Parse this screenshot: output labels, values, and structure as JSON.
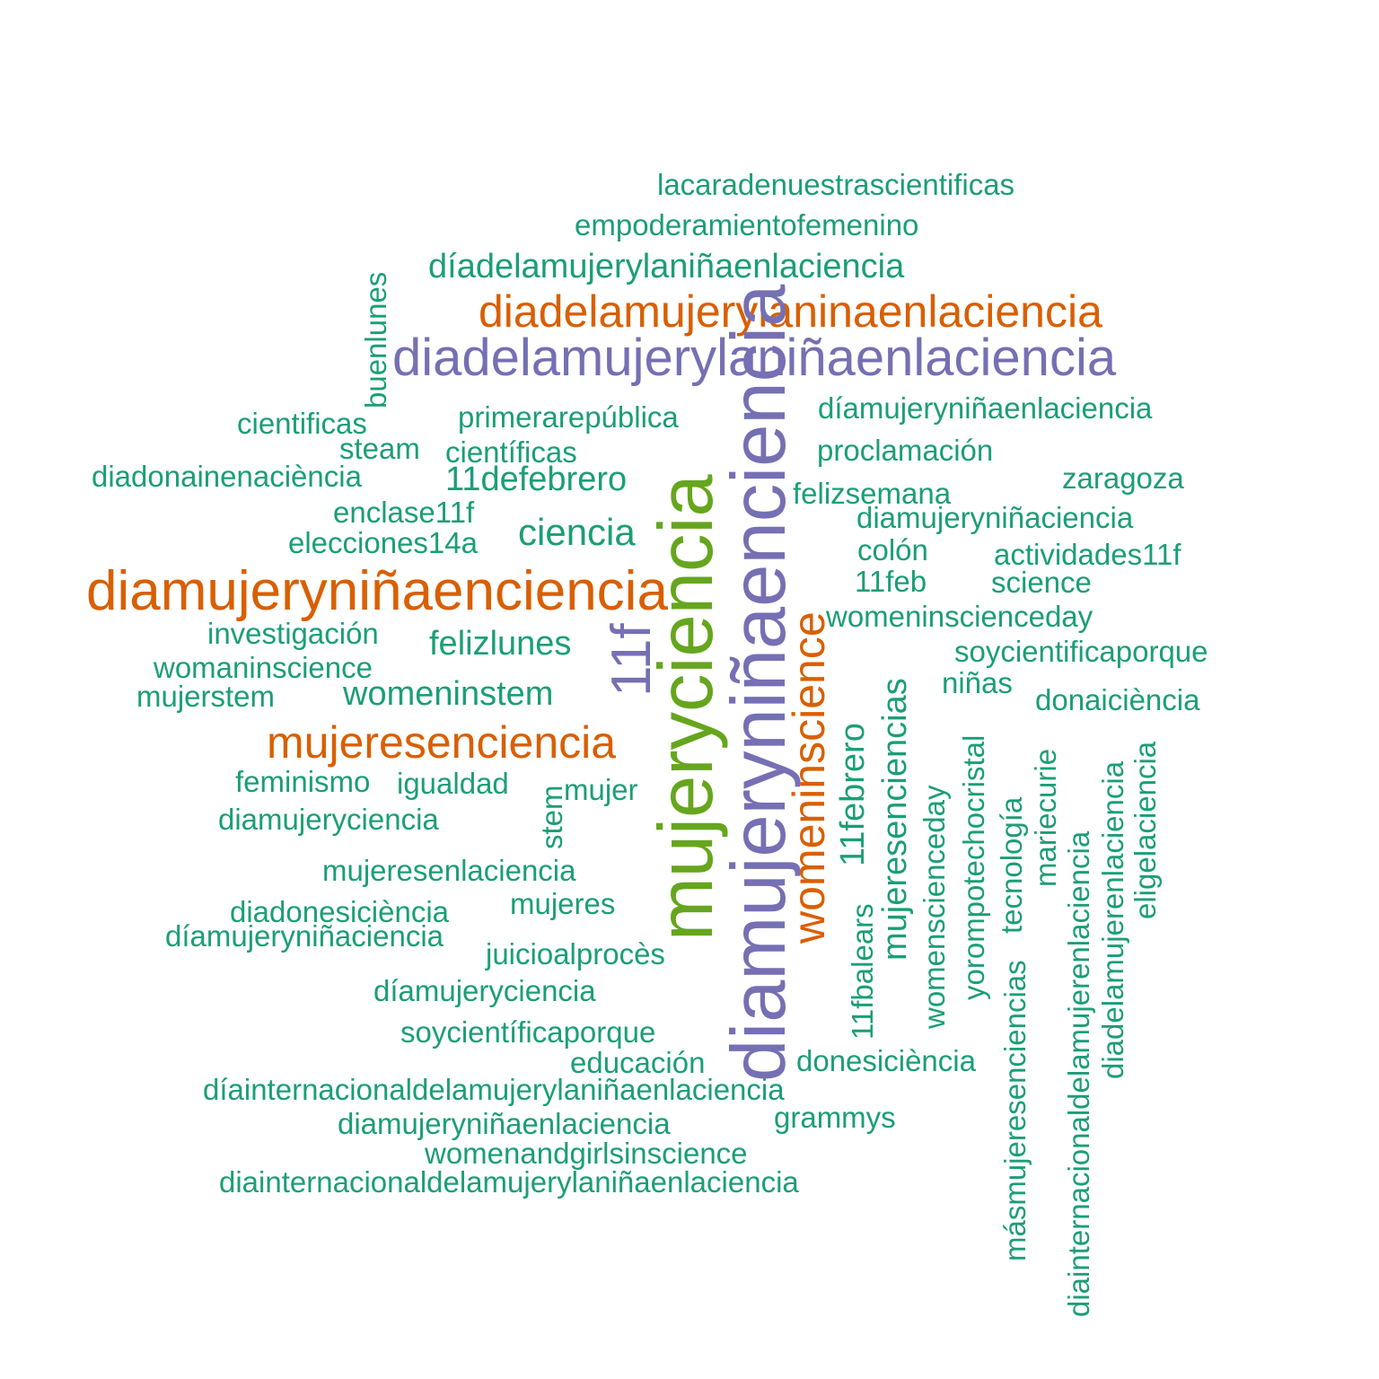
{
  "colors": {
    "teal": "#1b9e77",
    "orange": "#d95f02",
    "purple": "#7570b3",
    "green": "#66a61e",
    "background": "#ffffff"
  },
  "words": [
    "lacaradenuestrascientificas",
    "empoderamientofemenino",
    "díadelamujerylaniñaenlaciencia",
    "diadelamujerylaninaenlaciencia",
    "diadelamujerylaniñaenlaciencia",
    "buenlunes",
    "cientificas",
    "primerarepública",
    "díamujeryniñaenlaciencia",
    "steam",
    "científicas",
    "proclamación",
    "diadonainenaciència",
    "11defebrero",
    "zaragoza",
    "felizsemana",
    "enclase11f",
    "diamujeryniñaciencia",
    "elecciones14a",
    "ciencia",
    "colón",
    "actividades11f",
    "11feb",
    "science",
    "diamujeryniñaenciencia",
    "womeninscienceday",
    "investigación",
    "felizlunes",
    "soycientificaporque",
    "womaninscience",
    "niñas",
    "mujerstem",
    "womeninstem",
    "donaiciència",
    "mujeresenciencia",
    "feminismo",
    "igualdad",
    "mujer",
    "diamujeryciencia",
    "mujeresenlaciencia",
    "mujeres",
    "diadonesiciència",
    "díamujeryniñaciencia",
    "juicioalprocès",
    "díamujeryciencia",
    "soycientíficaporque",
    "educación",
    "donesiciència",
    "díainternacionaldelamujerylaniñaenlaciencia",
    "grammys",
    "diamujeryniñaenlaciencia",
    "womenandgirlsinscience",
    "diainternacionaldelamujerylaniñaenlaciencia",
    "mujeryciencia",
    "diamujeryniñaenciencia",
    "11f",
    "womeninscience",
    "11febrero",
    "mujeresenciencias",
    "11fbalears",
    "womenscienceday",
    "yorompotechocristal",
    "tecnología",
    "másmujeresenciencias",
    "mariecurie",
    "diainternacionaldelamujerenlaciencia",
    "diadelamujerenlaciencia",
    "eligelaciencia",
    "stem"
  ]
}
